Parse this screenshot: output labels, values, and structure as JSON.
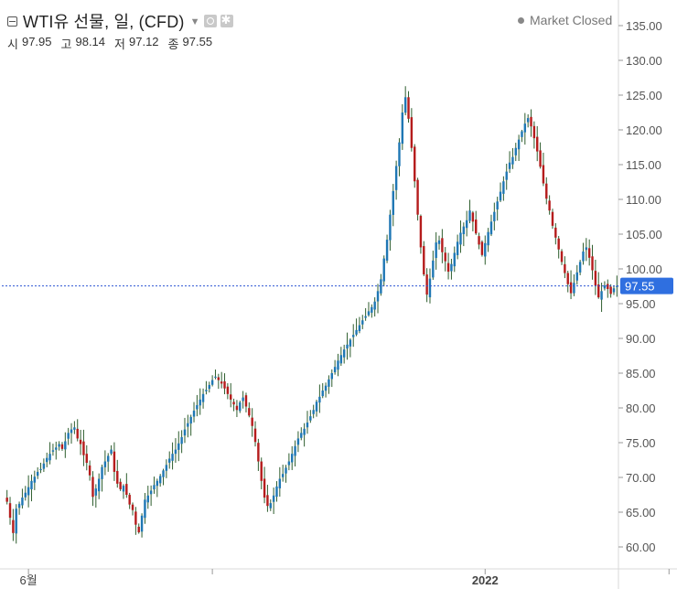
{
  "header": {
    "title": "WTI유 선물, 일, (CFD)",
    "ohlc": [
      {
        "label": "시",
        "value": "97.95"
      },
      {
        "label": "고",
        "value": "98.14"
      },
      {
        "label": "저",
        "value": "97.12"
      },
      {
        "label": "종",
        "value": "97.55"
      }
    ],
    "market_status": "Market Closed"
  },
  "colors": {
    "up": "#1f77b4",
    "down": "#b51c1c",
    "wick": "#2e5e2e",
    "last_price_line": "#2f55d4",
    "last_price_bg": "#2f6fe0"
  },
  "chart_data": {
    "type": "candlestick",
    "last_price": 97.55,
    "last_price_label": "97.55",
    "ylim": [
      58,
      137
    ],
    "y_ticks": [
      "135.00",
      "130.00",
      "125.00",
      "120.00",
      "115.00",
      "110.00",
      "105.00",
      "100.00",
      "95.00",
      "90.00",
      "85.00",
      "80.00",
      "75.00",
      "70.00",
      "65.00",
      "60.00"
    ],
    "x_labels": [
      {
        "label": "6월",
        "index": 7
      },
      {
        "label": "2022",
        "index": 156
      }
    ],
    "x_gridlines": [
      7,
      67,
      156,
      216,
      275
    ],
    "closes": [
      66.5,
      64.2,
      62.0,
      65.5,
      66.2,
      67.1,
      67.8,
      68.6,
      69.5,
      70.1,
      70.8,
      71.2,
      72.0,
      72.8,
      73.4,
      73.9,
      74.3,
      74.8,
      74.1,
      75.2,
      76.4,
      76.9,
      77.2,
      75.6,
      74.8,
      73.2,
      72.1,
      70.3,
      67.2,
      68.4,
      69.8,
      71.5,
      72.3,
      73.1,
      74.0,
      70.8,
      69.1,
      68.3,
      68.8,
      67.5,
      66.1,
      65.3,
      63.2,
      62.1,
      64.5,
      66.8,
      67.4,
      68.1,
      68.9,
      69.5,
      70.2,
      71.0,
      71.8,
      72.7,
      73.4,
      74.0,
      74.9,
      75.8,
      76.9,
      77.8,
      78.7,
      79.6,
      80.4,
      81.2,
      82.0,
      82.6,
      83.3,
      84.0,
      84.5,
      84.0,
      83.5,
      82.8,
      82.0,
      81.2,
      80.5,
      79.7,
      80.8,
      81.5,
      80.2,
      78.9,
      77.4,
      75.1,
      72.3,
      69.5,
      67.1,
      65.9,
      66.3,
      67.4,
      68.7,
      69.8,
      70.5,
      71.4,
      72.3,
      73.4,
      74.5,
      75.6,
      76.4,
      77.0,
      77.9,
      78.8,
      79.7,
      80.9,
      81.6,
      82.5,
      83.2,
      84.1,
      85.0,
      85.9,
      86.8,
      87.6,
      88.4,
      89.1,
      89.8,
      90.5,
      91.2,
      91.9,
      92.6,
      93.2,
      93.9,
      94.5,
      95.3,
      96.8,
      98.5,
      101.5,
      104.2,
      107.8,
      111.2,
      114.8,
      118.2,
      122.5,
      124.7,
      121.6,
      117.4,
      112.6,
      107.8,
      103.1,
      99.2,
      96.3,
      98.6,
      101.2,
      103.8,
      104.1,
      102.4,
      101.1,
      99.6,
      100.7,
      102.3,
      103.9,
      105.2,
      106.1,
      107.0,
      108.4,
      106.8,
      105.1,
      103.5,
      102.0,
      103.7,
      105.3,
      106.8,
      108.2,
      109.7,
      111.1,
      112.6,
      114.0,
      115.3,
      116.1,
      117.4,
      118.6,
      119.8,
      120.9,
      121.7,
      120.5,
      118.8,
      116.9,
      114.7,
      112.3,
      110.1,
      108.4,
      106.2,
      104.5,
      102.8,
      101.0,
      99.4,
      97.8,
      96.5,
      98.0,
      99.5,
      101.0,
      102.5,
      103.1,
      101.6,
      99.8,
      97.6,
      95.9,
      96.8,
      97.6,
      97.1,
      96.4,
      97.2,
      97.55
    ]
  }
}
